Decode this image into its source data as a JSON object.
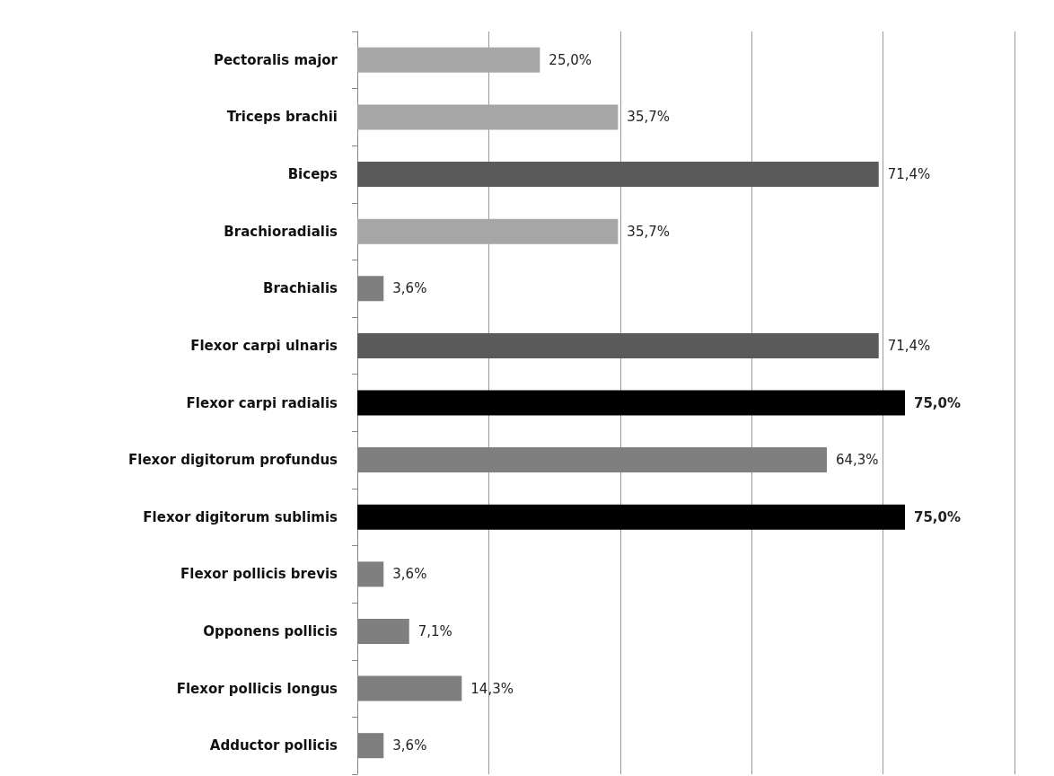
{
  "chart_data": {
    "type": "bar",
    "orientation": "horizontal",
    "categories": [
      "Pectoralis major",
      "Triceps brachii",
      "Biceps",
      "Brachioradialis",
      "Brachialis",
      "Flexor carpi ulnaris",
      "Flexor carpi radialis",
      "Flexor digitorum profundus",
      "Flexor digitorum sublimis",
      "Flexor pollicis brevis",
      "Opponens pollicis",
      "Flexor pollicis longus",
      "Adductor pollicis"
    ],
    "values": [
      25.0,
      35.7,
      71.4,
      35.7,
      3.6,
      71.4,
      75.0,
      64.3,
      75.0,
      3.6,
      7.1,
      14.3,
      3.6
    ],
    "colors": [
      "#a6a6a6",
      "#a6a6a6",
      "#5a5a5a",
      "#a6a6a6",
      "#7f7f7f",
      "#5a5a5a",
      "#000000",
      "#7f7f7f",
      "#000000",
      "#7f7f7f",
      "#7f7f7f",
      "#7f7f7f",
      "#7f7f7f"
    ],
    "value_labels": [
      "25,0%",
      "35,7%",
      "71,4%",
      "35,7%",
      "3,6%",
      "71,4%",
      "75,0%",
      "64,3%",
      "75,0%",
      "3,6%",
      "7,1%",
      "14,3%",
      "3,6%"
    ],
    "xlim": [
      0,
      90
    ],
    "xticks": [
      {
        "value": 0,
        "label": null
      },
      {
        "value": 18,
        "label": null
      },
      {
        "value": 36,
        "label": null
      },
      {
        "value": 54,
        "label": null
      },
      {
        "value": 72,
        "label": null
      },
      {
        "value": 90,
        "label": null
      }
    ],
    "grid": "x",
    "tick_labels": "y"
  }
}
